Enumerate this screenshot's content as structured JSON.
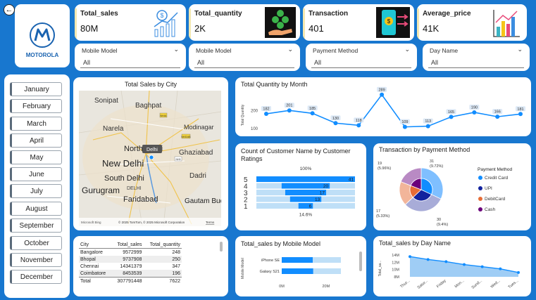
{
  "brand": {
    "name": "MOTOROLA"
  },
  "kpis": [
    {
      "label": "Total_sales",
      "value": "80M",
      "icon": "money-growth-chart-icon"
    },
    {
      "label": "Total_quantity",
      "value": "2K",
      "icon": "coins-hand-icon"
    },
    {
      "label": "Transaction",
      "value": "401",
      "icon": "mobile-payment-icon"
    },
    {
      "label": "Average_price",
      "value": "41K",
      "icon": "bar-chart-icon"
    }
  ],
  "slicers": [
    {
      "label": "Mobile Model",
      "value": "All"
    },
    {
      "label": "Mobile Model",
      "value": "All"
    },
    {
      "label": "Payment Method",
      "value": "All"
    },
    {
      "label": "Day Name",
      "value": "All"
    }
  ],
  "months": [
    "January",
    "February",
    "March",
    "April",
    "May",
    "June",
    "July",
    "August",
    "September",
    "October",
    "November",
    "December"
  ],
  "map": {
    "title": "Total Sales by City",
    "labels": [
      "Sonipat",
      "Baghpat",
      "Narela",
      "Modinagar",
      "North Delhi",
      "Ghaziabad",
      "New Delhi",
      "South Delhi",
      "DELHI",
      "Dadri",
      "Gurugram",
      "Faridabad",
      "Gautam Buddha Nag"
    ],
    "tooltip": "Delhi",
    "roads": [
      "NH44",
      "NH334B",
      "NH9"
    ],
    "attribution": "© 2025 TomTom, © 2025 Microsoft Corporation",
    "terms": "Terms",
    "logo": "Microsoft Bing"
  },
  "table": {
    "columns": [
      "City",
      "Total_sales",
      "Total_quantity"
    ],
    "rows": [
      [
        "Bangalore",
        "9572999",
        "248"
      ],
      [
        "Bhopal",
        "9737908",
        "250"
      ],
      [
        "Chennai",
        "14341379",
        "347"
      ],
      [
        "Coimbatore",
        "8453539",
        "196"
      ]
    ],
    "total": [
      "Total",
      "307791448",
      "7622"
    ]
  },
  "chart_data": [
    {
      "type": "line",
      "title": "Total Quantity by Month",
      "ylabel": "Total Quantity",
      "yticks": [
        "200",
        "100"
      ],
      "values": [
        182,
        201,
        185,
        130,
        118,
        289,
        109,
        113,
        165,
        190,
        166,
        181
      ],
      "ylim": [
        80,
        300
      ]
    },
    {
      "type": "bar",
      "subtype": "funnel",
      "title": "Count of Customer Name by Customer Ratings",
      "categories": [
        "5",
        "4",
        "3",
        "2",
        "1"
      ],
      "values": [
        41,
        20,
        17,
        13,
        6
      ],
      "top_label": "100%",
      "bottom_label": "14.6%"
    },
    {
      "type": "pie",
      "subtype": "sunburst",
      "title": "Transaction by Payment Method",
      "legend_title": "Payment Method",
      "legend_position": "right",
      "series": [
        {
          "name": "Credit Card",
          "color": "#118dff"
        },
        {
          "name": "UPI",
          "color": "#12239e"
        },
        {
          "name": "DebitCard",
          "color": "#e66c37"
        },
        {
          "name": "Cash",
          "color": "#6b007b"
        }
      ],
      "slice_labels": [
        "31 (9.72%)",
        "30 (9.4%)",
        "17 (5.33%)",
        "19 (5.96%)"
      ]
    },
    {
      "type": "bar",
      "title": "Total_sales by Mobile Model",
      "ylabel": "Mobile Model",
      "categories": [
        "iPhone SE",
        "Galaxy S21"
      ],
      "values": [
        14.0,
        14.2
      ],
      "xticks": [
        "0M",
        "20M"
      ],
      "xlim": [
        0,
        28
      ]
    },
    {
      "type": "area",
      "title": "Total_sales by Day Name",
      "ylabel": "Total_sa...",
      "yticks": [
        "14M",
        "12M",
        "10M",
        "8M"
      ],
      "categories": [
        "Thur...",
        "Satur...",
        "Friday",
        "Mon...",
        "Sund...",
        "Wed...",
        "Tues..."
      ],
      "values": [
        13.6,
        12.8,
        12.2,
        11.4,
        10.8,
        10.2,
        9.2
      ],
      "ylim": [
        8,
        15
      ]
    }
  ],
  "colors": {
    "background": "#1877cf",
    "accent": "#118dff",
    "light": "#6fbef5",
    "logo": "#1a63b0"
  }
}
